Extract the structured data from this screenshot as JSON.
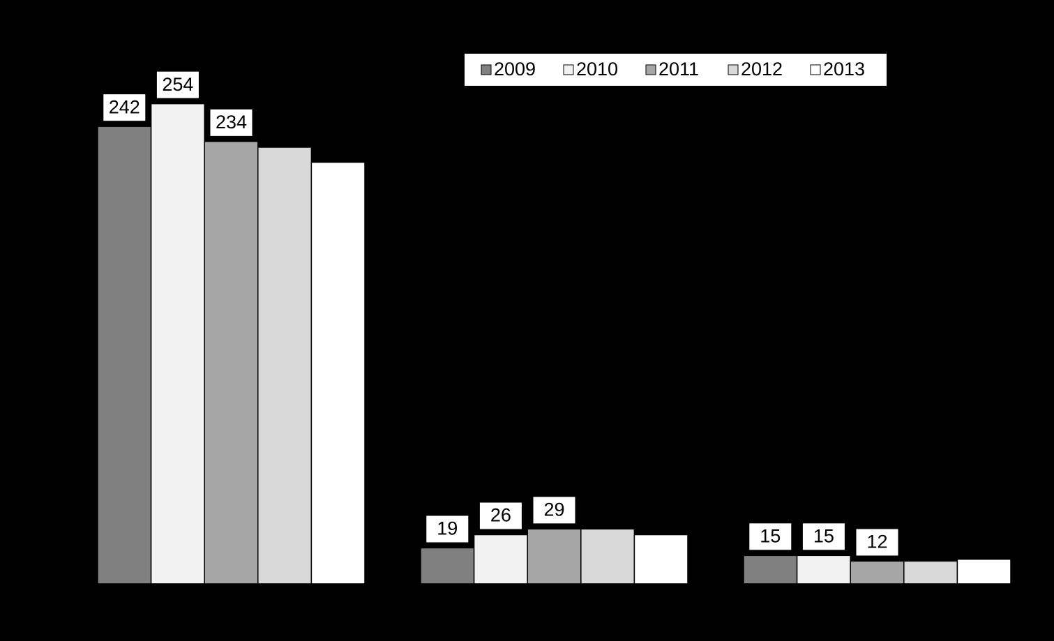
{
  "chart_data": {
    "type": "bar",
    "categories": [
      null,
      null,
      null
    ],
    "series": [
      {
        "name": "2009",
        "color": "#808080",
        "values": [
          242,
          19,
          15
        ],
        "show_labels": true
      },
      {
        "name": "2010",
        "color": "#f2f2f2",
        "values": [
          254,
          26,
          15
        ],
        "show_labels": true
      },
      {
        "name": "2011",
        "color": "#a6a6a6",
        "values": [
          234,
          29,
          12
        ],
        "show_labels": true
      },
      {
        "name": "2012",
        "color": "#d9d9d9",
        "values": [
          231,
          29,
          12
        ],
        "show_labels": false
      },
      {
        "name": "2013",
        "color": "#ffffff",
        "values": [
          223,
          26,
          13
        ],
        "show_labels": false
      }
    ],
    "ylim": [
      0,
      300
    ],
    "legend": "top-right"
  }
}
